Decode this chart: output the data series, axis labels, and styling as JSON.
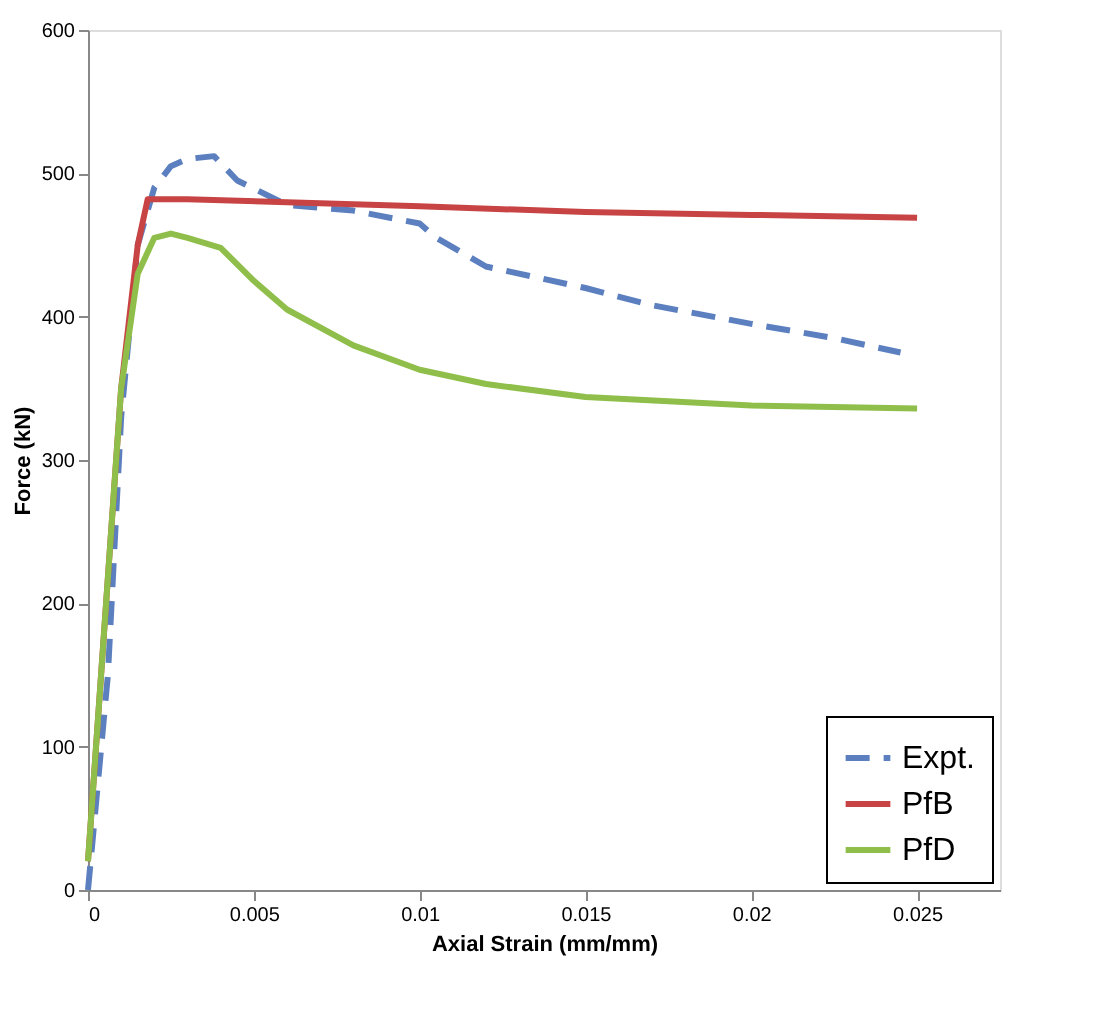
{
  "chart_data": {
    "type": "line",
    "xlabel": "Axial Strain (mm/mm)",
    "ylabel": "Force (kN)",
    "xlim": [
      0,
      0.0275
    ],
    "xticks": [
      0,
      0.005,
      0.01,
      0.015,
      0.02,
      0.025
    ],
    "ylim": [
      0,
      600
    ],
    "yticks": [
      0,
      100,
      200,
      300,
      400,
      500,
      600
    ],
    "grid": false,
    "legend": "bottom right",
    "marker": "none",
    "series": [
      {
        "name": "Expt.",
        "color": "#5b7fbf",
        "line_style": "dashed",
        "x": [
          0,
          0.0006,
          0.001,
          0.0015,
          0.002,
          0.0025,
          0.003,
          0.0038,
          0.0045,
          0.006,
          0.008,
          0.01,
          0.0105,
          0.012,
          0.015,
          0.017,
          0.02,
          0.0225,
          0.0245
        ],
        "values": [
          0,
          150,
          330,
          450,
          490,
          505,
          510,
          512,
          495,
          478,
          474,
          465,
          455,
          435,
          420,
          408,
          395,
          385,
          375
        ]
      },
      {
        "name": "PfB",
        "color": "#c84444",
        "line_style": "solid",
        "x": [
          0,
          0.001,
          0.0015,
          0.0018,
          0.003,
          0.01,
          0.015,
          0.02,
          0.025
        ],
        "values": [
          20,
          350,
          450,
          482,
          482,
          477,
          473,
          471,
          469
        ]
      },
      {
        "name": "PfD",
        "color": "#8fbf4a",
        "line_style": "solid",
        "x": [
          0,
          0.001,
          0.0015,
          0.002,
          0.0025,
          0.003,
          0.004,
          0.005,
          0.006,
          0.008,
          0.01,
          0.012,
          0.015,
          0.02,
          0.025
        ],
        "values": [
          20,
          350,
          430,
          455,
          458,
          455,
          448,
          425,
          405,
          380,
          363,
          353,
          344,
          338,
          336
        ]
      }
    ]
  }
}
